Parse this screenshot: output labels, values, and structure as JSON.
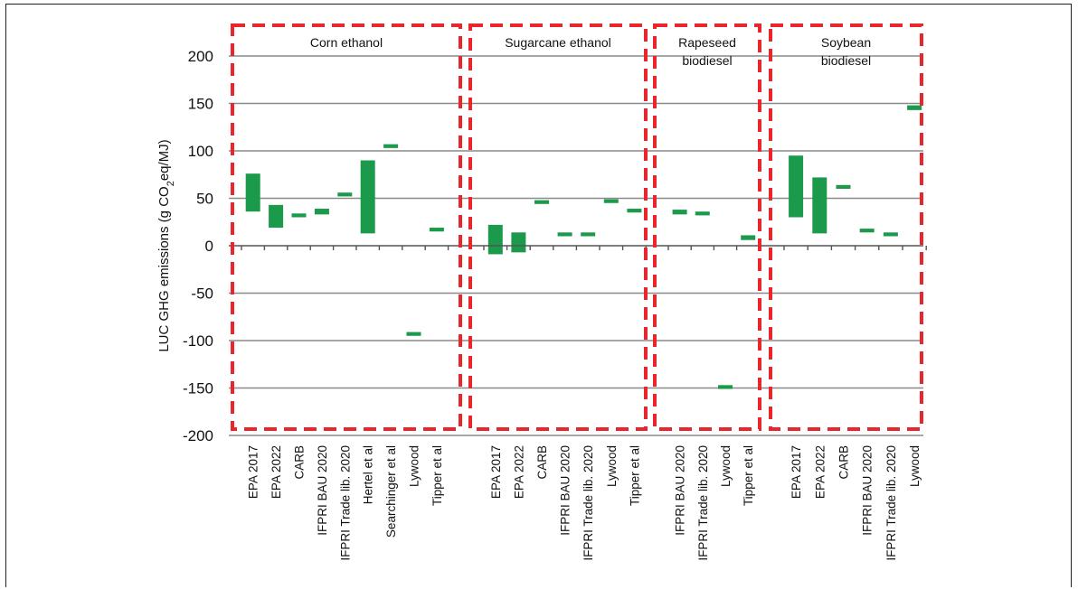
{
  "chart_data": {
    "type": "bar",
    "subtype": "floating-range",
    "ylabel_prefix": "LUC GHG emissions (g CO",
    "ylabel_sub": "2",
    "ylabel_suffix": "eq/MJ)",
    "ylim": [
      -200,
      200
    ],
    "yticks": [
      200,
      150,
      100,
      50,
      0,
      -50,
      -100,
      -150,
      -200
    ],
    "grid": true,
    "bar_color": "#1a9a4a",
    "group_box_color": "#e8262b",
    "groups": [
      {
        "label_lines": [
          "Corn ethanol"
        ],
        "items": [
          {
            "label": "EPA 2017",
            "low": 36,
            "high": 76
          },
          {
            "label": "EPA 2022",
            "low": 19,
            "high": 43
          },
          {
            "label": "CARB",
            "low": 30,
            "high": 34
          },
          {
            "label": "IFPRI BAU 2020",
            "low": 33,
            "high": 39
          },
          {
            "label": "IFPRI Trade lib. 2020",
            "low": 52,
            "high": 56
          },
          {
            "label": "Hertel et al",
            "low": 13,
            "high": 90
          },
          {
            "label": "Searchinger et al",
            "low": 103,
            "high": 107
          },
          {
            "label": "Lywood",
            "low": -95,
            "high": -91
          },
          {
            "label": "Tipper et al",
            "low": 15,
            "high": 19
          }
        ]
      },
      {
        "label_lines": [
          "Sugarcane ethanol"
        ],
        "items": [
          {
            "label": "EPA 2017",
            "low": -9,
            "high": 22
          },
          {
            "label": "EPA 2022",
            "low": -7,
            "high": 14
          },
          {
            "label": "CARB",
            "low": 44,
            "high": 48
          },
          {
            "label": "IFPRI BAU 2020",
            "low": 10,
            "high": 14
          },
          {
            "label": "IFPRI Trade lib. 2020",
            "low": 10,
            "high": 14
          },
          {
            "label": "Lywood",
            "low": 45,
            "high": 49
          },
          {
            "label": "Tipper et al",
            "low": 35,
            "high": 39
          }
        ]
      },
      {
        "label_lines": [
          "Rapeseed",
          "biodiesel"
        ],
        "items": [
          {
            "label": "IFPRI BAU 2020",
            "low": 33,
            "high": 38
          },
          {
            "label": "IFPRI Trade lib. 2020",
            "low": 32,
            "high": 36
          },
          {
            "label": "Lywood",
            "low": -151,
            "high": -147
          },
          {
            "label": "Tipper et al",
            "low": 6,
            "high": 11
          }
        ]
      },
      {
        "label_lines": [
          "Soybean",
          "biodiesel"
        ],
        "items": [
          {
            "label": "EPA 2017",
            "low": 30,
            "high": 95
          },
          {
            "label": "EPA 2022",
            "low": 13,
            "high": 72
          },
          {
            "label": "CARB",
            "low": 60,
            "high": 64
          },
          {
            "label": "IFPRI BAU 2020",
            "low": 14,
            "high": 18
          },
          {
            "label": "IFPRI Trade lib. 2020",
            "low": 10,
            "high": 14
          },
          {
            "label": "Lywood",
            "low": 143,
            "high": 148
          }
        ]
      }
    ]
  }
}
